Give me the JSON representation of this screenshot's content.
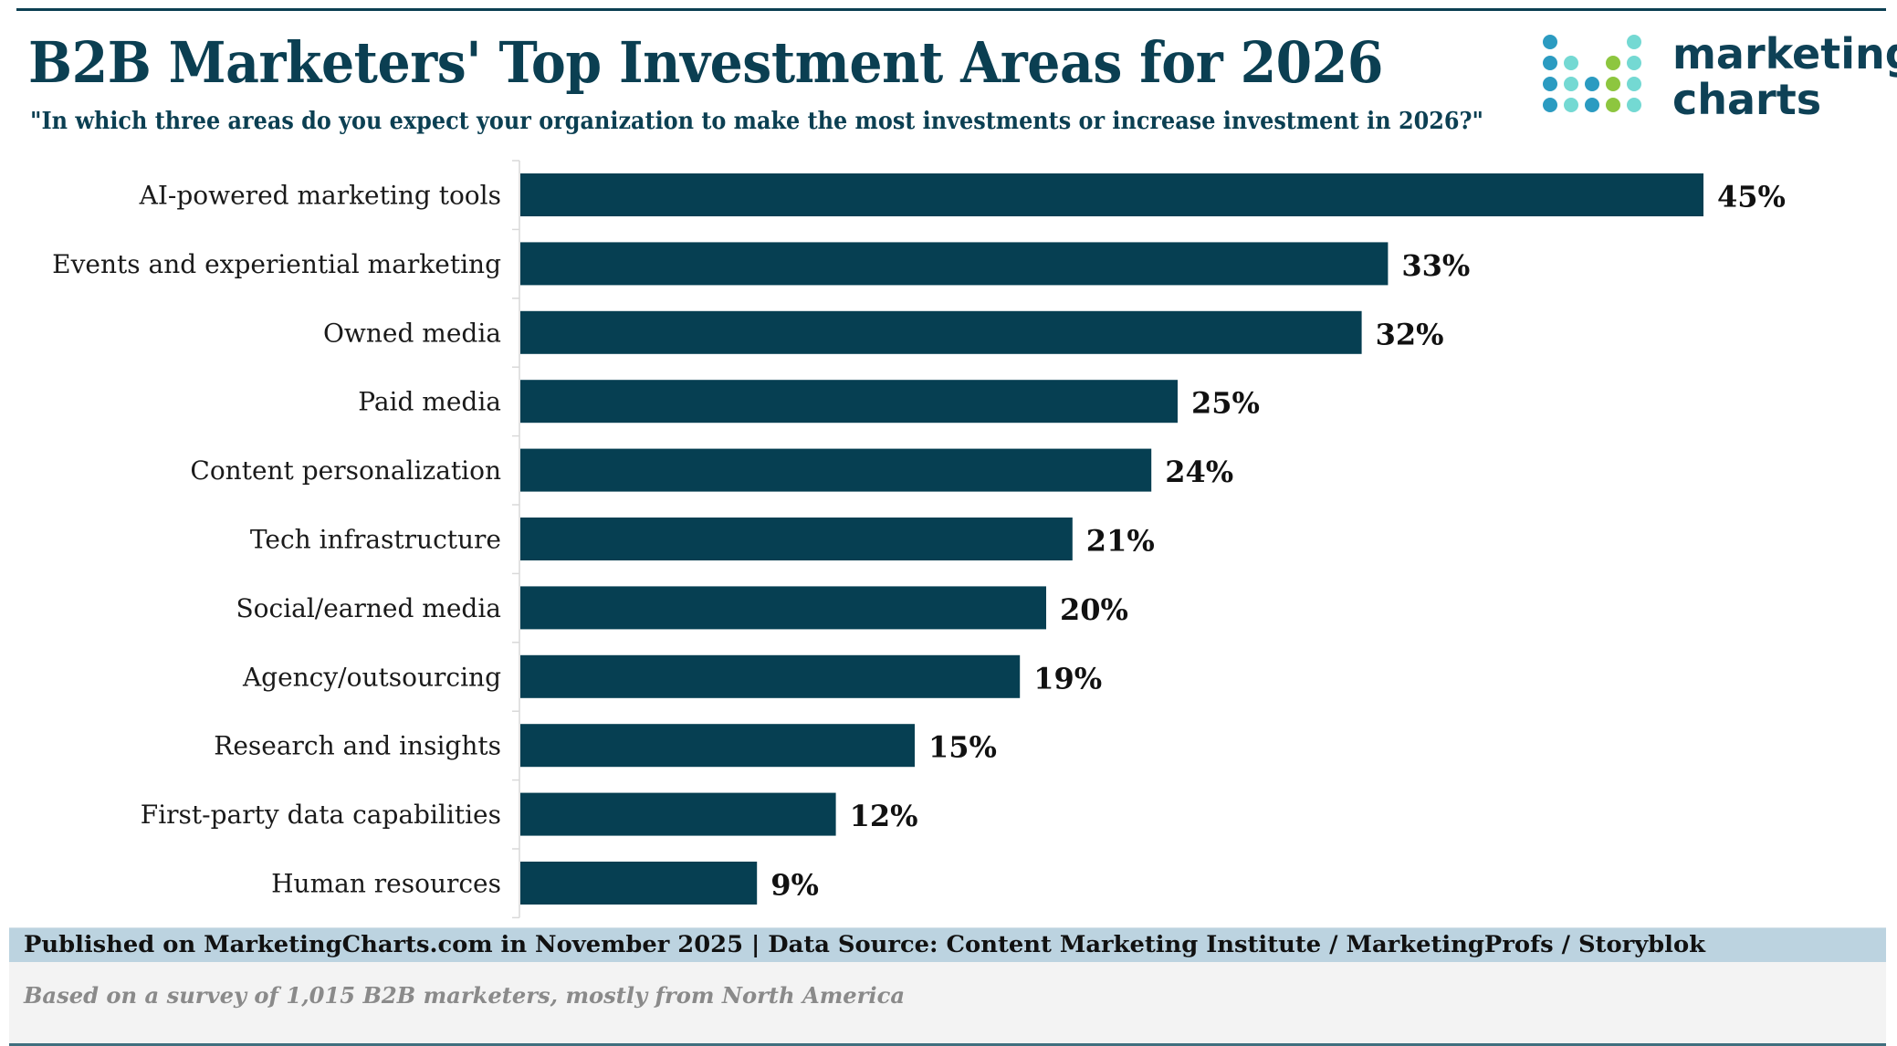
{
  "header": {
    "title": "B2B Marketers' Top Investment Areas for 2026",
    "subtitle": "\"In which three areas do you expect your organization to make the most investments or increase investment in 2026?\""
  },
  "logo": {
    "line1": "marketing",
    "line2": "charts",
    "icon": "dot-matrix-logo-icon",
    "colors": {
      "blue": "#2b9bc1",
      "teal": "#74d9d3",
      "green": "#8dc63f"
    }
  },
  "chart_data": {
    "type": "bar",
    "orientation": "horizontal",
    "title": "B2B Marketers' Top Investment Areas for 2026",
    "subtitle": "\"In which three areas do you expect your organization to make the most investments or increase investment in 2026?\"",
    "xlabel": "",
    "ylabel": "",
    "xlim": [
      0,
      50
    ],
    "grid": false,
    "legend": "none",
    "bar_color": "#063f52",
    "value_suffix": "%",
    "categories": [
      "AI-powered marketing tools",
      "Events and experiential marketing",
      "Owned media",
      "Paid media",
      "Content personalization",
      "Tech infrastructure",
      "Social/earned media",
      "Agency/outsourcing",
      "Research and insights",
      "First-party data capabilities",
      "Human resources"
    ],
    "values": [
      45,
      33,
      32,
      25,
      24,
      21,
      20,
      19,
      15,
      12,
      9
    ],
    "data_labels": [
      "45%",
      "33%",
      "32%",
      "25%",
      "24%",
      "21%",
      "20%",
      "19%",
      "15%",
      "12%",
      "9%"
    ]
  },
  "footer": {
    "source": "Published on MarketingCharts.com in November 2025 | Data Source: Content Marketing Institute / MarketingProfs / Storyblok",
    "note": "Based on a survey of 1,015 B2B marketers, mostly from North America"
  }
}
